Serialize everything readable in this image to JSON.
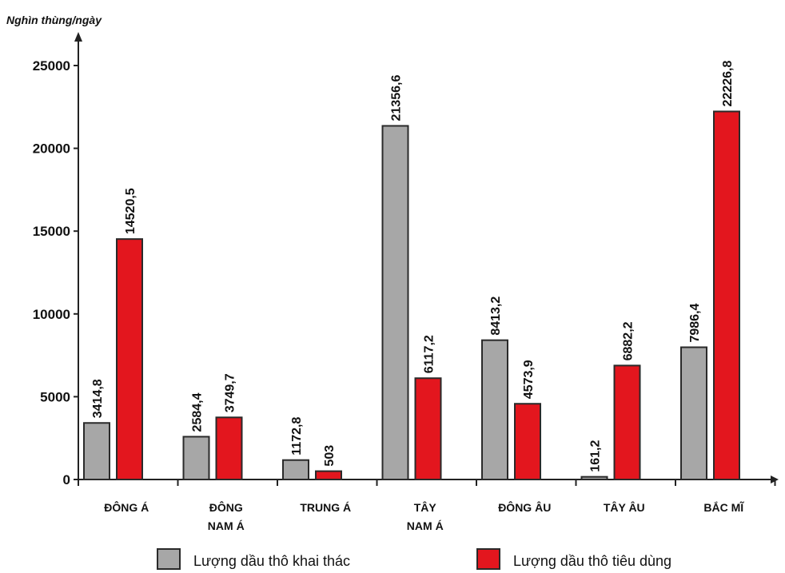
{
  "chart_data": {
    "type": "bar",
    "ylabel": "Nghìn thùng/ngày",
    "ylim": [
      0,
      27000
    ],
    "yticks": [
      0,
      5000,
      10000,
      15000,
      20000,
      25000
    ],
    "ytick_labels": [
      "0",
      "5000",
      "10000",
      "15000",
      "20000",
      "25000"
    ],
    "categories": [
      [
        "ĐÔNG Á"
      ],
      [
        "ĐÔNG",
        "NAM Á"
      ],
      [
        "TRUNG Á"
      ],
      [
        "TÂY",
        "NAM Á"
      ],
      [
        "ĐÔNG ÂU"
      ],
      [
        "TÂY ÂU"
      ],
      [
        "BẮC MĨ"
      ]
    ],
    "series": [
      {
        "name": "Lượng dầu thô khai thác",
        "color": "#a7a7a7",
        "values": [
          3414.8,
          2584.4,
          1172.8,
          21356.6,
          8413.2,
          161.2,
          7986.4
        ],
        "labels": [
          "3414,8",
          "2584,4",
          "1172,8",
          "21356,6",
          "8413,2",
          "161,2",
          "7986,4"
        ]
      },
      {
        "name": "Lượng dầu thô tiêu dùng",
        "color": "#e3161e",
        "values": [
          14520.5,
          3749.7,
          503,
          6117.2,
          4573.9,
          6882.2,
          22226.8
        ],
        "labels": [
          "14520,5",
          "3749,7",
          "503",
          "6117,2",
          "4573,9",
          "6882,2",
          "22226,8"
        ]
      }
    ],
    "grid": false,
    "legend_position": "bottom"
  }
}
